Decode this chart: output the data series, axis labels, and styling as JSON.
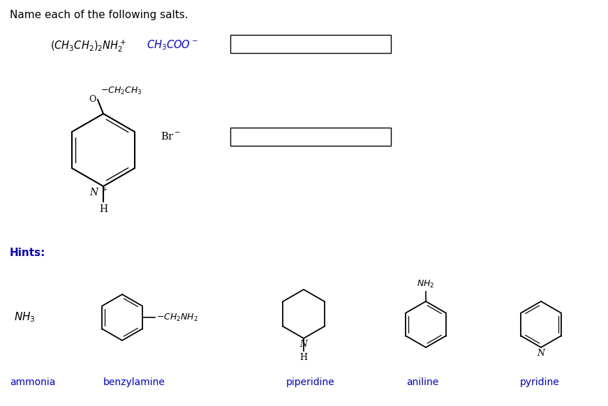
{
  "title": "Name each of the following salts.",
  "title_color": "#000000",
  "title_fontsize": 11,
  "background_color": "#ffffff",
  "hints_label": "Hints:",
  "hints_color": "#0000cc",
  "hints_fontsize": 11,
  "hint_labels": [
    "ammonia",
    "benzylamine",
    "piperidine",
    "aniline",
    "pyridine"
  ],
  "hint_label_color": "#0000cc",
  "hint_label_fontsize": 10,
  "box_color": "#000000",
  "structure_color": "#000000",
  "anion_color": "#0000cc",
  "br_color": "#000000"
}
